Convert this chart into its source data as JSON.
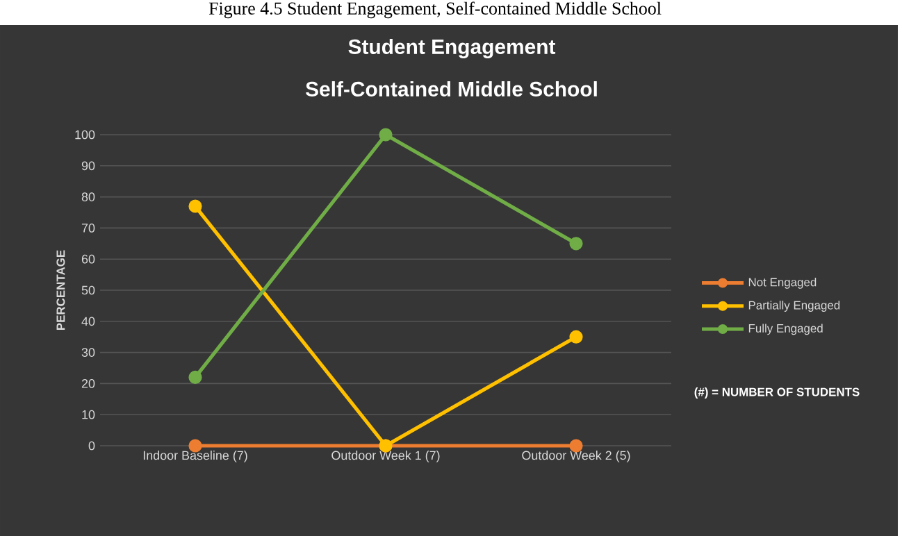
{
  "chart_data": {
    "type": "line",
    "title": "Student Engagement",
    "subtitle": "Self-Contained Middle School",
    "ylabel": "PERCENTAGE",
    "categories": [
      "Indoor Baseline (7)",
      "Outdoor Week 1 (7)",
      "Outdoor Week 2 (5)"
    ],
    "series": [
      {
        "name": "Not Engaged",
        "color": "#ed7d31",
        "values": [
          0,
          0,
          0
        ]
      },
      {
        "name": "Partially Engaged",
        "color": "#ffc000",
        "values": [
          77,
          0,
          35
        ]
      },
      {
        "name": "Fully Engaged",
        "color": "#70ad47",
        "values": [
          22,
          100,
          65
        ]
      }
    ],
    "ylim": [
      0,
      100
    ],
    "yticks": [
      0,
      10,
      20,
      30,
      40,
      50,
      60,
      70,
      80,
      90,
      100
    ],
    "grid": "y",
    "legend": "right",
    "marker": "circle",
    "line_style": "solid",
    "annotations": [
      "Figure 4.5 Student Engagement, Self-contained Middle School",
      "(#) = NUMBER OF STUDENTS"
    ]
  }
}
